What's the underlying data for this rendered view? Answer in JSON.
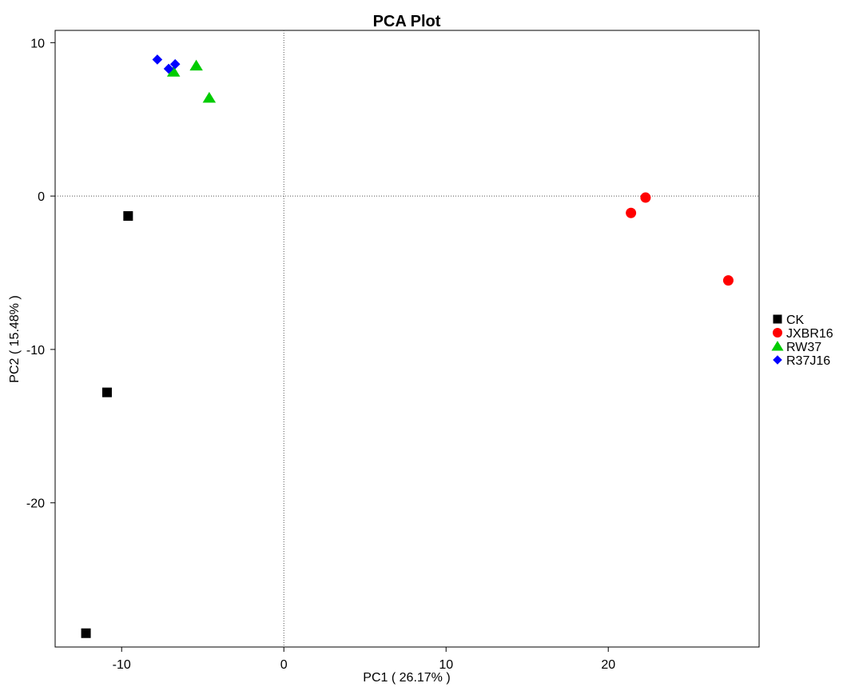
{
  "chart_data": {
    "type": "scatter",
    "title": "PCA Plot",
    "xlabel": "PC1 ( 26.17% )",
    "ylabel": "PC2 ( 15.48% )",
    "xlim": [
      -14.1,
      29.3
    ],
    "ylim": [
      -29.4,
      10.8
    ],
    "x_ticks": [
      -10,
      0,
      10,
      20
    ],
    "y_ticks": [
      10,
      0,
      -10,
      -20
    ],
    "x_tick_labels": [
      "-10",
      "0",
      "10",
      "20"
    ],
    "y_tick_labels": [
      "10",
      "0",
      "-10",
      "-20"
    ],
    "reference_lines": {
      "x": 0,
      "y": 0,
      "style": "dotted"
    },
    "grid": false,
    "legend_position": "right",
    "series": [
      {
        "name": "CK",
        "marker": "square",
        "color": "#000000",
        "points": [
          [
            -9.6,
            -1.3
          ],
          [
            -10.9,
            -12.8
          ],
          [
            -12.2,
            -28.5
          ]
        ]
      },
      {
        "name": "JXBR16",
        "marker": "circle",
        "color": "#ff0000",
        "points": [
          [
            22.3,
            -0.1
          ],
          [
            21.4,
            -1.1
          ],
          [
            27.4,
            -5.5
          ]
        ]
      },
      {
        "name": "RW37",
        "marker": "triangle",
        "color": "#00cc00",
        "points": [
          [
            -5.4,
            8.5
          ],
          [
            -6.8,
            8.1
          ],
          [
            -4.6,
            6.4
          ]
        ]
      },
      {
        "name": "R37J16",
        "marker": "diamond",
        "color": "#0000ff",
        "points": [
          [
            -7.8,
            8.9
          ],
          [
            -7.1,
            8.3
          ],
          [
            -6.7,
            8.6
          ]
        ]
      }
    ]
  }
}
